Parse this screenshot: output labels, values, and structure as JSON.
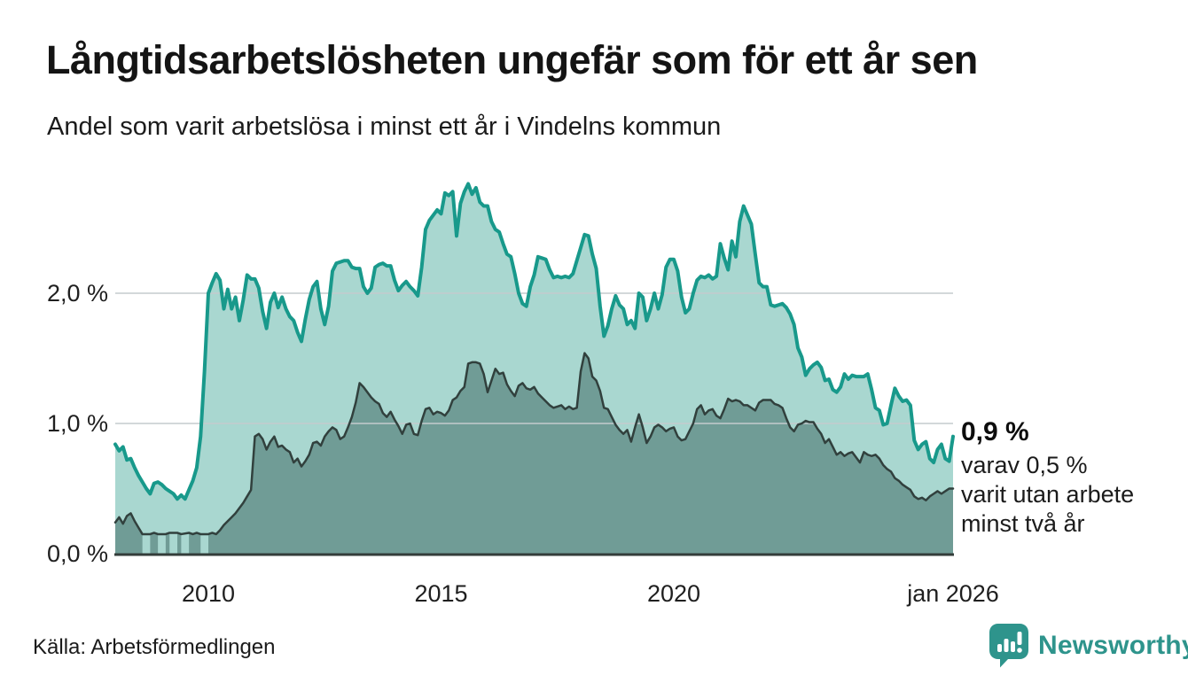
{
  "header": {
    "title": "Långtidsarbetslösheten ungefär som för ett år sen",
    "subtitle": "Andel som varit arbetslösa i minst ett år i Vindelns kommun"
  },
  "chart_data": {
    "type": "area",
    "unit": "%",
    "frequency": "monthly",
    "x_start": "2008-01",
    "x_end": "2026-01",
    "ylim": [
      0,
      2.9
    ],
    "grid": "horizontal",
    "y_ticks": [
      {
        "value": 2.0,
        "label": "2,0 %"
      },
      {
        "value": 1.0,
        "label": "1,0 %"
      },
      {
        "value": 0.0,
        "label": "0,0 %"
      }
    ],
    "x_ticks": [
      {
        "month_index": 24,
        "label": "2010"
      },
      {
        "month_index": 84,
        "label": "2015"
      },
      {
        "month_index": 144,
        "label": "2020"
      },
      {
        "month_index": 216,
        "label": "jan 2026"
      }
    ],
    "series": [
      {
        "name": "Arbetslösa minst ett år",
        "color": "#18998b",
        "fill": "#a9d7d0",
        "latest_value": 0.9,
        "values": [
          0.84,
          0.79,
          0.82,
          0.72,
          0.73,
          0.66,
          0.6,
          0.55,
          0.5,
          0.46,
          0.54,
          0.55,
          0.53,
          0.5,
          0.48,
          0.46,
          0.42,
          0.45,
          0.42,
          0.49,
          0.56,
          0.66,
          0.9,
          1.4,
          2.0,
          2.08,
          2.15,
          2.1,
          1.88,
          2.03,
          1.88,
          1.97,
          1.79,
          1.95,
          2.14,
          2.11,
          2.11,
          2.04,
          1.86,
          1.73,
          1.93,
          2.0,
          1.89,
          1.97,
          1.88,
          1.82,
          1.79,
          1.7,
          1.63,
          1.8,
          1.95,
          2.05,
          2.09,
          1.88,
          1.76,
          1.9,
          2.17,
          2.23,
          2.24,
          2.25,
          2.25,
          2.2,
          2.19,
          2.19,
          2.05,
          2.0,
          2.04,
          2.2,
          2.22,
          2.23,
          2.21,
          2.21,
          2.1,
          2.02,
          2.06,
          2.09,
          2.05,
          2.02,
          1.98,
          2.2,
          2.49,
          2.56,
          2.6,
          2.64,
          2.61,
          2.77,
          2.75,
          2.78,
          2.44,
          2.69,
          2.78,
          2.84,
          2.76,
          2.81,
          2.7,
          2.67,
          2.67,
          2.55,
          2.49,
          2.47,
          2.38,
          2.3,
          2.28,
          2.15,
          2.0,
          1.92,
          1.9,
          2.05,
          2.14,
          2.28,
          2.27,
          2.26,
          2.18,
          2.12,
          2.13,
          2.12,
          2.13,
          2.12,
          2.15,
          2.25,
          2.35,
          2.45,
          2.44,
          2.3,
          2.19,
          1.9,
          1.67,
          1.75,
          1.88,
          1.98,
          1.91,
          1.88,
          1.76,
          1.79,
          1.73,
          2.0,
          1.97,
          1.79,
          1.88,
          2.0,
          1.88,
          1.99,
          2.2,
          2.26,
          2.26,
          2.17,
          1.97,
          1.85,
          1.88,
          2.0,
          2.1,
          2.13,
          2.12,
          2.14,
          2.11,
          2.13,
          2.38,
          2.27,
          2.18,
          2.4,
          2.28,
          2.55,
          2.67,
          2.6,
          2.53,
          2.3,
          2.08,
          2.05,
          2.05,
          1.91,
          1.9,
          1.91,
          1.92,
          1.89,
          1.84,
          1.76,
          1.58,
          1.51,
          1.37,
          1.42,
          1.45,
          1.47,
          1.43,
          1.33,
          1.34,
          1.26,
          1.24,
          1.28,
          1.38,
          1.34,
          1.37,
          1.36,
          1.36,
          1.36,
          1.38,
          1.26,
          1.12,
          1.1,
          0.99,
          1.0,
          1.14,
          1.27,
          1.21,
          1.17,
          1.18,
          1.14,
          0.87,
          0.8,
          0.84,
          0.86,
          0.73,
          0.7,
          0.8,
          0.84,
          0.73,
          0.71,
          0.9
        ]
      },
      {
        "name": "Arbetslösa minst två år",
        "color": "#31403d",
        "fill": "#709c96",
        "latest_value": 0.5,
        "values": [
          0.24,
          0.28,
          0.23,
          0.29,
          0.31,
          0.25,
          0.2,
          0.15,
          null,
          0.15,
          0.16,
          0.15,
          null,
          0.15,
          0.16,
          null,
          0.16,
          0.15,
          null,
          0.16,
          0.15,
          0.16,
          0.15,
          null,
          0.15,
          0.16,
          0.15,
          0.18,
          0.22,
          0.25,
          0.28,
          0.31,
          0.35,
          0.39,
          0.44,
          0.49,
          0.9,
          0.92,
          0.88,
          0.8,
          0.86,
          0.9,
          0.82,
          0.83,
          0.8,
          0.78,
          0.7,
          0.73,
          0.67,
          0.71,
          0.76,
          0.85,
          0.86,
          0.83,
          0.9,
          0.94,
          0.97,
          0.95,
          0.88,
          0.9,
          0.97,
          1.05,
          1.16,
          1.31,
          1.28,
          1.24,
          1.2,
          1.17,
          1.15,
          1.08,
          1.05,
          1.09,
          1.03,
          0.98,
          0.92,
          0.99,
          1.0,
          0.92,
          0.91,
          1.02,
          1.11,
          1.12,
          1.07,
          1.09,
          1.08,
          1.06,
          1.1,
          1.18,
          1.2,
          1.25,
          1.28,
          1.46,
          1.47,
          1.47,
          1.46,
          1.38,
          1.24,
          1.33,
          1.42,
          1.38,
          1.39,
          1.3,
          1.25,
          1.21,
          1.29,
          1.31,
          1.27,
          1.26,
          1.28,
          1.23,
          1.2,
          1.17,
          1.14,
          1.12,
          1.13,
          1.14,
          1.11,
          1.13,
          1.11,
          1.12,
          1.4,
          1.54,
          1.5,
          1.36,
          1.33,
          1.25,
          1.12,
          1.11,
          1.05,
          0.99,
          0.95,
          0.92,
          0.95,
          0.86,
          0.97,
          1.07,
          0.97,
          0.85,
          0.9,
          0.97,
          0.99,
          0.97,
          0.94,
          0.96,
          0.97,
          0.9,
          0.87,
          0.88,
          0.94,
          1.0,
          1.11,
          1.14,
          1.07,
          1.1,
          1.11,
          1.06,
          1.04,
          1.11,
          1.19,
          1.17,
          1.18,
          1.17,
          1.14,
          1.14,
          1.12,
          1.1,
          1.16,
          1.18,
          1.18,
          1.18,
          1.15,
          1.14,
          1.12,
          1.04,
          0.97,
          0.94,
          0.99,
          1.0,
          1.02,
          1.01,
          1.01,
          0.96,
          0.92,
          0.85,
          0.88,
          0.82,
          0.76,
          0.78,
          0.75,
          0.77,
          0.78,
          0.74,
          0.7,
          0.78,
          0.76,
          0.75,
          0.76,
          0.73,
          0.68,
          0.65,
          0.63,
          0.58,
          0.56,
          0.53,
          0.51,
          0.49,
          0.44,
          0.42,
          0.43,
          0.41,
          0.44,
          0.46,
          0.48,
          0.46,
          0.48,
          0.5,
          0.5
        ]
      }
    ],
    "annotation": {
      "value_label": "0,9 %",
      "lines": [
        "varav 0,5 %",
        "varit utan arbete",
        "minst två år"
      ]
    }
  },
  "footer": {
    "source": "Källa: Arbetsförmedlingen",
    "logo_text": "Newsworthy"
  },
  "colors": {
    "accent_teal": "#18998b",
    "light_fill": "#a9d7d0",
    "dark_line": "#31403d",
    "dark_fill": "#709c96",
    "grid": "#c4cbce",
    "baseline": "#333d3a",
    "logo_teal": "#2e948c",
    "text": "#1b1b1b"
  }
}
